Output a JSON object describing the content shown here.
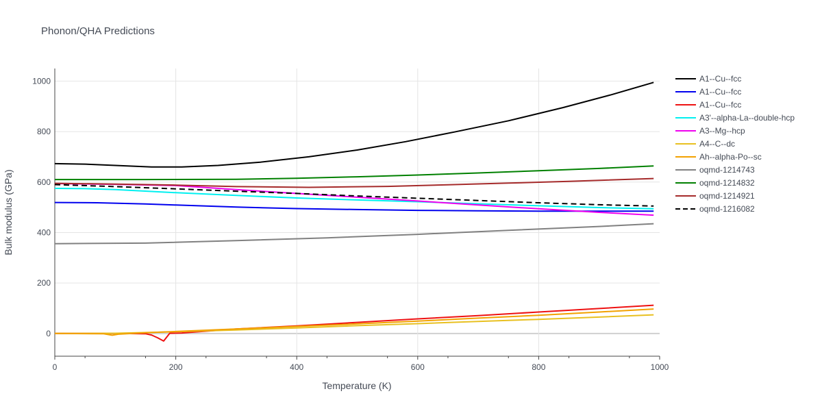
{
  "chart_data": {
    "type": "line",
    "title": "Phonon/QHA Predictions",
    "xlabel": "Temperature (K)",
    "ylabel": "Bulk modulus (GPa)",
    "xlim": [
      0,
      1000
    ],
    "ylim": [
      -90,
      1050
    ],
    "xticks": [
      0,
      200,
      400,
      600,
      800,
      1000
    ],
    "yticks": [
      0,
      200,
      400,
      600,
      800,
      1000
    ],
    "grid": true,
    "legend_position": "right",
    "series": [
      {
        "name": "A1--Cu--fcc",
        "color": "#000000",
        "dash": false,
        "x": [
          0,
          50,
          100,
          160,
          210,
          270,
          340,
          420,
          500,
          580,
          660,
          750,
          840,
          920,
          990
        ],
        "y": [
          673,
          671,
          666,
          660,
          660,
          666,
          679,
          700,
          727,
          760,
          798,
          843,
          895,
          946,
          995
        ]
      },
      {
        "name": "A1--Cu--fcc",
        "color": "#0000ee",
        "dash": false,
        "x": [
          0,
          70,
          150,
          200,
          300,
          400,
          500,
          600,
          700,
          800,
          900,
          990
        ],
        "y": [
          519,
          518,
          513,
          509,
          501,
          495,
          491,
          488,
          486,
          485,
          485,
          485
        ]
      },
      {
        "name": "A1--Cu--fcc",
        "color": "#ee1111",
        "dash": false,
        "x": [
          0,
          50,
          100,
          150,
          160,
          170,
          180,
          190,
          210,
          300,
          400,
          500,
          600,
          700,
          800,
          900,
          990
        ],
        "y": [
          0,
          0,
          0,
          -1,
          -6,
          -17,
          -30,
          1,
          2,
          18,
          30,
          44,
          58,
          71,
          85,
          99,
          112
        ]
      },
      {
        "name": "A3'--alpha-La--double-hcp",
        "color": "#00f0f0",
        "dash": false,
        "x": [
          0,
          50,
          100,
          200,
          300,
          400,
          500,
          600,
          700,
          800,
          900,
          990
        ],
        "y": [
          575,
          574,
          570,
          558,
          547,
          537,
          529,
          522,
          514,
          506,
          499,
          494
        ]
      },
      {
        "name": "A3--Mg--hcp",
        "color": "#ee00ee",
        "dash": false,
        "x": [
          0,
          100,
          200,
          300,
          400,
          500,
          600,
          700,
          800,
          900,
          990
        ],
        "y": [
          594,
          591,
          586,
          570,
          555,
          540,
          525,
          509,
          494,
          480,
          469
        ]
      },
      {
        "name": "A4--C--dc",
        "color": "#e8c020",
        "dash": false,
        "x": [
          0,
          100,
          200,
          300,
          400,
          500,
          600,
          700,
          800,
          900,
          990
        ],
        "y": [
          0,
          1,
          7,
          14,
          22,
          31,
          39,
          48,
          56,
          65,
          74
        ]
      },
      {
        "name": "Ah--alpha-Po--sc",
        "color": "#f2a100",
        "dash": false,
        "x": [
          0,
          80,
          95,
          105,
          150,
          200,
          300,
          400,
          500,
          600,
          700,
          800,
          900,
          990
        ],
        "y": [
          0,
          -1,
          -7,
          -3,
          3,
          8,
          18,
          28,
          38,
          49,
          61,
          72,
          85,
          97
        ]
      },
      {
        "name": "oqmd-1214743",
        "color": "#808080",
        "dash": false,
        "x": [
          0,
          150,
          300,
          450,
          600,
          750,
          900,
          990
        ],
        "y": [
          356,
          358,
          368,
          379,
          393,
          409,
          424,
          435
        ]
      },
      {
        "name": "oqmd-1214832",
        "color": "#008000",
        "dash": false,
        "x": [
          0,
          150,
          300,
          400,
          500,
          600,
          700,
          800,
          900,
          990
        ],
        "y": [
          610,
          610,
          611,
          615,
          621,
          628,
          636,
          645,
          654,
          664
        ]
      },
      {
        "name": "oqmd-1214921",
        "color": "#a52a2a",
        "dash": false,
        "x": [
          0,
          100,
          200,
          300,
          420,
          550,
          650,
          750,
          850,
          990
        ],
        "y": [
          595,
          592,
          588,
          582,
          579,
          583,
          589,
          596,
          603,
          614
        ]
      },
      {
        "name": "oqmd-1216082",
        "color": "#000000",
        "dash": true,
        "x": [
          0,
          100,
          200,
          300,
          400,
          500,
          600,
          700,
          800,
          900,
          990
        ],
        "y": [
          590,
          582,
          573,
          564,
          555,
          545,
          536,
          527,
          518,
          510,
          505
        ]
      }
    ]
  }
}
